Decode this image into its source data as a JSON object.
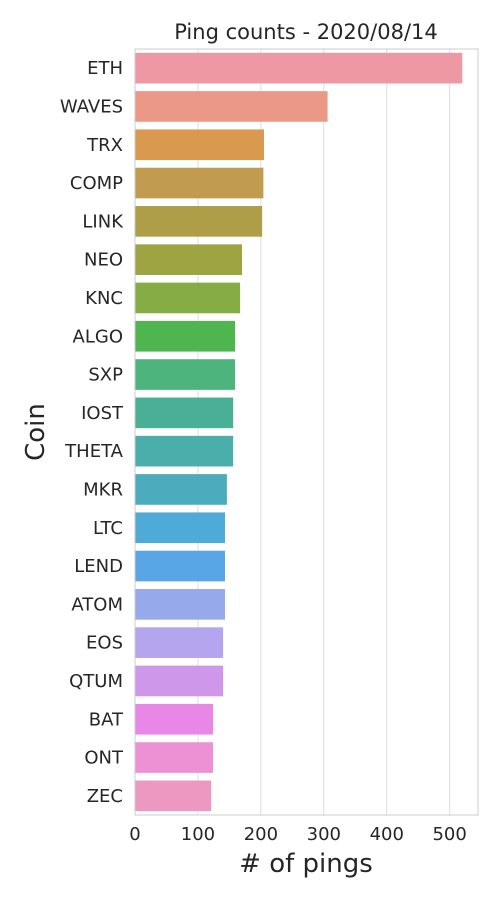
{
  "chart_data": {
    "type": "bar",
    "orientation": "horizontal",
    "title": "Ping counts - 2020/08/14",
    "xlabel": "# of pings",
    "ylabel": "Coin",
    "xlim": [
      0,
      545
    ],
    "xticks": [
      0,
      100,
      200,
      300,
      400,
      500
    ],
    "grid": "vertical",
    "categories": [
      "ETH",
      "WAVES",
      "TRX",
      "COMP",
      "LINK",
      "NEO",
      "KNC",
      "ALGO",
      "SXP",
      "IOST",
      "THETA",
      "MKR",
      "LTC",
      "LEND",
      "ATOM",
      "EOS",
      "QTUM",
      "BAT",
      "ONT",
      "ZEC"
    ],
    "values": [
      520,
      306,
      205,
      204,
      202,
      170,
      167,
      159,
      159,
      156,
      156,
      146,
      143,
      143,
      143,
      140,
      140,
      124,
      124,
      121
    ],
    "colors": [
      "#ee98a4",
      "#eb9886",
      "#d99a50",
      "#c19b4f",
      "#ae9e48",
      "#9ea442",
      "#85ac45",
      "#4fb54e",
      "#4db47d",
      "#49b096",
      "#4aafab",
      "#4bacbe",
      "#4eaad6",
      "#59a6e6",
      "#96a9eb",
      "#b4a5ee",
      "#cf97e9",
      "#e887e6",
      "#ec92d4",
      "#ec98c1"
    ]
  }
}
